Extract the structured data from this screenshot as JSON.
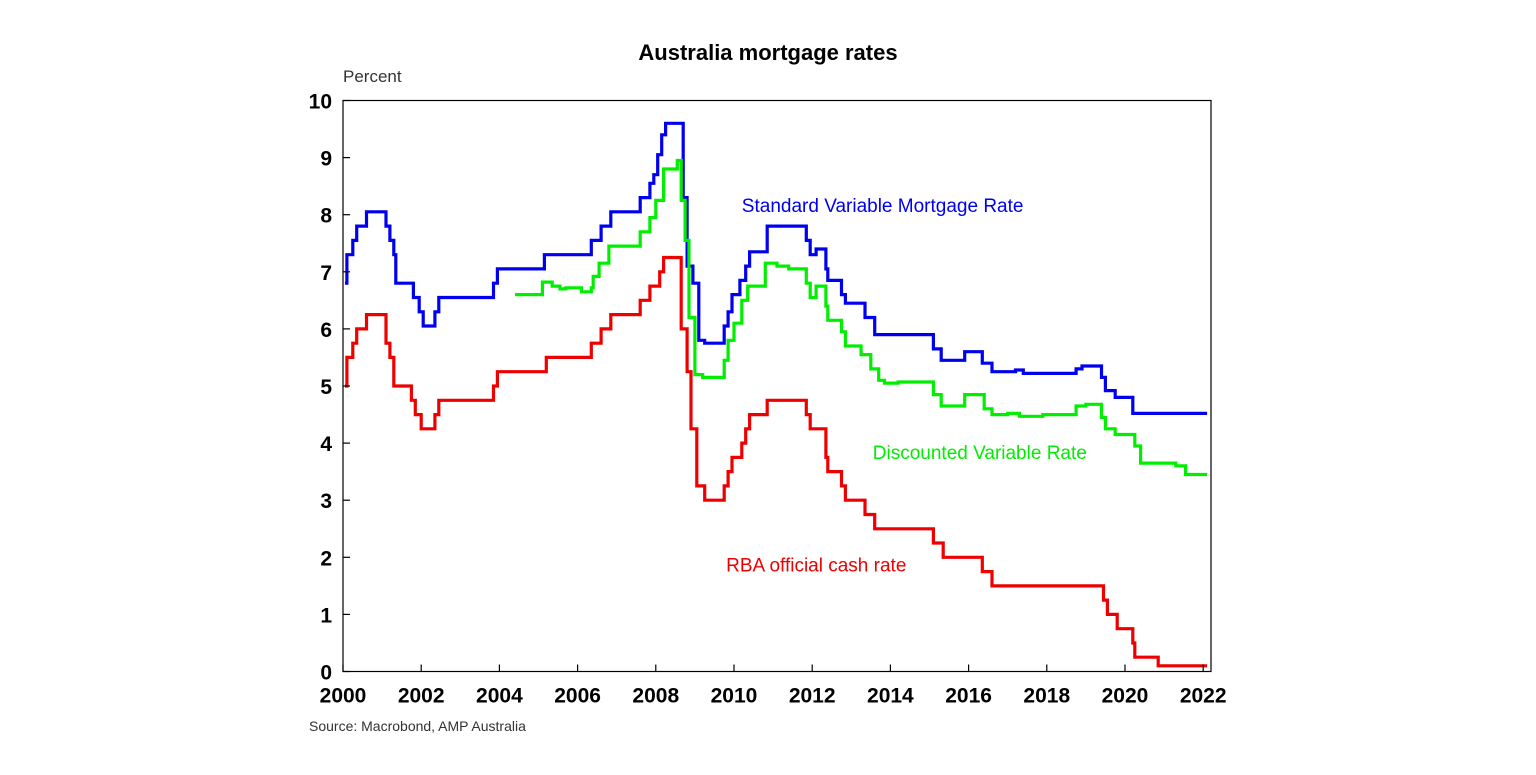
{
  "chart_data": {
    "type": "line",
    "title": "Australia mortgage rates",
    "ylabel": "Percent",
    "xlabel": "",
    "source": "Source: Macrobond, AMP Australia",
    "xlim": [
      2000,
      2022.2
    ],
    "ylim": [
      0,
      10
    ],
    "x_ticks": [
      "2000",
      "2002",
      "2004",
      "2006",
      "2008",
      "2010",
      "2012",
      "2014",
      "2016",
      "2018",
      "2020",
      "2022"
    ],
    "y_ticks": [
      "0",
      "1",
      "2",
      "3",
      "4",
      "5",
      "6",
      "7",
      "8",
      "9",
      "10"
    ],
    "grid": false,
    "legend": "inline labels",
    "series": [
      {
        "name": "Standard Variable Mortgage Rate",
        "color": "#0000ee",
        "step": true,
        "points": [
          [
            2000.05,
            6.8
          ],
          [
            2000.1,
            7.3
          ],
          [
            2000.25,
            7.55
          ],
          [
            2000.35,
            7.8
          ],
          [
            2000.6,
            8.05
          ],
          [
            2001.1,
            7.8
          ],
          [
            2001.2,
            7.55
          ],
          [
            2001.3,
            7.3
          ],
          [
            2001.35,
            6.8
          ],
          [
            2001.8,
            6.55
          ],
          [
            2001.95,
            6.3
          ],
          [
            2002.05,
            6.05
          ],
          [
            2002.35,
            6.3
          ],
          [
            2002.45,
            6.55
          ],
          [
            2003.85,
            6.8
          ],
          [
            2003.95,
            7.05
          ],
          [
            2005.15,
            7.3
          ],
          [
            2006.35,
            7.55
          ],
          [
            2006.6,
            7.8
          ],
          [
            2006.85,
            8.05
          ],
          [
            2007.6,
            8.3
          ],
          [
            2007.85,
            8.55
          ],
          [
            2007.95,
            8.7
          ],
          [
            2008.05,
            9.05
          ],
          [
            2008.15,
            9.4
          ],
          [
            2008.25,
            9.6
          ],
          [
            2008.55,
            9.6
          ],
          [
            2008.7,
            8.3
          ],
          [
            2008.8,
            7.1
          ],
          [
            2008.95,
            6.8
          ],
          [
            2009.1,
            5.8
          ],
          [
            2009.25,
            5.75
          ],
          [
            2009.75,
            6.05
          ],
          [
            2009.85,
            6.3
          ],
          [
            2009.95,
            6.6
          ],
          [
            2010.15,
            6.85
          ],
          [
            2010.3,
            7.1
          ],
          [
            2010.4,
            7.35
          ],
          [
            2010.85,
            7.8
          ],
          [
            2011.85,
            7.55
          ],
          [
            2011.95,
            7.3
          ],
          [
            2012.1,
            7.4
          ],
          [
            2012.35,
            7.05
          ],
          [
            2012.4,
            6.85
          ],
          [
            2012.75,
            6.6
          ],
          [
            2012.85,
            6.45
          ],
          [
            2013.35,
            6.2
          ],
          [
            2013.6,
            5.9
          ],
          [
            2015.1,
            5.65
          ],
          [
            2015.3,
            5.45
          ],
          [
            2015.9,
            5.6
          ],
          [
            2016.35,
            5.4
          ],
          [
            2016.6,
            5.25
          ],
          [
            2017.2,
            5.28
          ],
          [
            2017.4,
            5.22
          ],
          [
            2018.75,
            5.3
          ],
          [
            2018.9,
            5.35
          ],
          [
            2019.4,
            5.15
          ],
          [
            2019.5,
            4.92
          ],
          [
            2019.75,
            4.8
          ],
          [
            2020.2,
            4.52
          ],
          [
            2022.1,
            4.52
          ]
        ]
      },
      {
        "name": "Discounted Variable Rate",
        "color": "#00ee00",
        "step": true,
        "points": [
          [
            2004.4,
            6.6
          ],
          [
            2005.0,
            6.6
          ],
          [
            2005.1,
            6.82
          ],
          [
            2005.35,
            6.75
          ],
          [
            2005.55,
            6.7
          ],
          [
            2005.7,
            6.72
          ],
          [
            2006.1,
            6.65
          ],
          [
            2006.35,
            6.72
          ],
          [
            2006.4,
            6.92
          ],
          [
            2006.55,
            7.15
          ],
          [
            2006.8,
            7.45
          ],
          [
            2007.6,
            7.7
          ],
          [
            2007.85,
            7.95
          ],
          [
            2008.0,
            8.25
          ],
          [
            2008.2,
            8.8
          ],
          [
            2008.55,
            8.95
          ],
          [
            2008.65,
            8.25
          ],
          [
            2008.75,
            7.55
          ],
          [
            2008.85,
            6.2
          ],
          [
            2009.0,
            5.2
          ],
          [
            2009.2,
            5.15
          ],
          [
            2009.75,
            5.45
          ],
          [
            2009.85,
            5.8
          ],
          [
            2010.0,
            6.1
          ],
          [
            2010.2,
            6.5
          ],
          [
            2010.35,
            6.75
          ],
          [
            2010.8,
            7.15
          ],
          [
            2011.1,
            7.1
          ],
          [
            2011.4,
            7.05
          ],
          [
            2011.85,
            6.8
          ],
          [
            2011.95,
            6.55
          ],
          [
            2012.1,
            6.75
          ],
          [
            2012.35,
            6.4
          ],
          [
            2012.4,
            6.15
          ],
          [
            2012.75,
            5.95
          ],
          [
            2012.85,
            5.7
          ],
          [
            2013.25,
            5.55
          ],
          [
            2013.5,
            5.3
          ],
          [
            2013.7,
            5.1
          ],
          [
            2013.85,
            5.05
          ],
          [
            2014.2,
            5.07
          ],
          [
            2015.1,
            4.85
          ],
          [
            2015.3,
            4.65
          ],
          [
            2015.9,
            4.85
          ],
          [
            2016.4,
            4.6
          ],
          [
            2016.6,
            4.5
          ],
          [
            2017.0,
            4.52
          ],
          [
            2017.3,
            4.47
          ],
          [
            2017.9,
            4.5
          ],
          [
            2018.75,
            4.65
          ],
          [
            2019.0,
            4.68
          ],
          [
            2019.4,
            4.45
          ],
          [
            2019.5,
            4.25
          ],
          [
            2019.75,
            4.15
          ],
          [
            2020.25,
            3.95
          ],
          [
            2020.4,
            3.65
          ],
          [
            2021.3,
            3.6
          ],
          [
            2021.55,
            3.45
          ],
          [
            2022.1,
            3.45
          ]
        ]
      },
      {
        "name": "RBA official cash rate",
        "color": "#ee0000",
        "step": true,
        "points": [
          [
            2000.05,
            5.0
          ],
          [
            2000.1,
            5.5
          ],
          [
            2000.25,
            5.75
          ],
          [
            2000.35,
            6.0
          ],
          [
            2000.6,
            6.25
          ],
          [
            2001.1,
            5.75
          ],
          [
            2001.2,
            5.5
          ],
          [
            2001.3,
            5.0
          ],
          [
            2001.75,
            4.75
          ],
          [
            2001.85,
            4.5
          ],
          [
            2002.0,
            4.25
          ],
          [
            2002.35,
            4.5
          ],
          [
            2002.45,
            4.75
          ],
          [
            2003.85,
            5.0
          ],
          [
            2003.95,
            5.25
          ],
          [
            2005.2,
            5.5
          ],
          [
            2006.35,
            5.75
          ],
          [
            2006.6,
            6.0
          ],
          [
            2006.85,
            6.25
          ],
          [
            2007.6,
            6.5
          ],
          [
            2007.85,
            6.75
          ],
          [
            2008.1,
            7.0
          ],
          [
            2008.2,
            7.25
          ],
          [
            2008.65,
            6.0
          ],
          [
            2008.8,
            5.25
          ],
          [
            2008.9,
            4.25
          ],
          [
            2009.05,
            3.25
          ],
          [
            2009.25,
            3.0
          ],
          [
            2009.75,
            3.25
          ],
          [
            2009.85,
            3.5
          ],
          [
            2009.95,
            3.75
          ],
          [
            2010.2,
            4.0
          ],
          [
            2010.3,
            4.25
          ],
          [
            2010.4,
            4.5
          ],
          [
            2010.85,
            4.75
          ],
          [
            2011.85,
            4.5
          ],
          [
            2011.95,
            4.25
          ],
          [
            2012.35,
            3.75
          ],
          [
            2012.4,
            3.5
          ],
          [
            2012.75,
            3.25
          ],
          [
            2012.85,
            3.0
          ],
          [
            2013.35,
            2.75
          ],
          [
            2013.6,
            2.5
          ],
          [
            2015.1,
            2.25
          ],
          [
            2015.35,
            2.0
          ],
          [
            2016.35,
            1.75
          ],
          [
            2016.6,
            1.5
          ],
          [
            2019.45,
            1.25
          ],
          [
            2019.55,
            1.0
          ],
          [
            2019.8,
            0.75
          ],
          [
            2020.2,
            0.5
          ],
          [
            2020.25,
            0.25
          ],
          [
            2020.85,
            0.1
          ],
          [
            2022.1,
            0.1
          ]
        ]
      }
    ],
    "annotations": [
      {
        "text": "Standard Variable Mortgage Rate",
        "color": "#0000ee",
        "x": 2010.2,
        "y": 8.05
      },
      {
        "text": "Discounted Variable Rate",
        "color": "#00ee00",
        "x": 2013.55,
        "y": 3.72
      },
      {
        "text": "RBA official cash rate",
        "color": "#ee0000",
        "x": 2009.8,
        "y": 1.75
      }
    ]
  }
}
